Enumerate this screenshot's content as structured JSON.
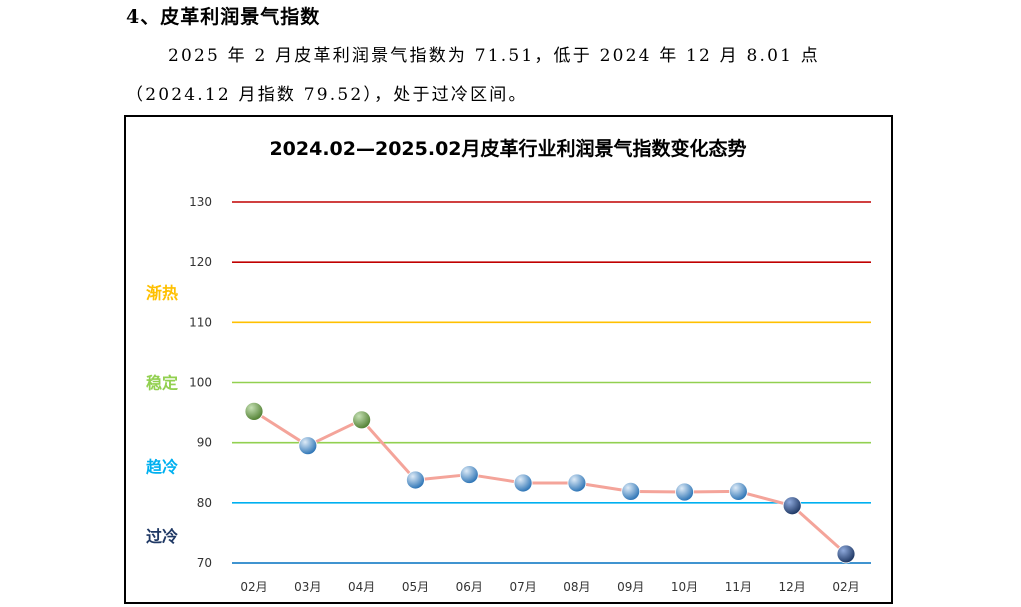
{
  "heading": "4、皮革利润景气指数",
  "paragraph": {
    "line1": "2025 年 2 月皮革利润景气指数为 71.51，低于 2024 年 12 月 8.01 点",
    "line2": "（2024.12 月指数 79.52），处于过冷区间。"
  },
  "chart_data": {
    "type": "line",
    "title": "2024.02—2025.02月皮革行业利润景气指数变化态势",
    "categories": [
      "02月",
      "03月",
      "04月",
      "05月",
      "06月",
      "07月",
      "08月",
      "09月",
      "10月",
      "11月",
      "12月",
      "02月"
    ],
    "values": [
      95.2,
      89.5,
      93.8,
      83.8,
      84.7,
      83.3,
      83.3,
      81.9,
      81.8,
      81.9,
      79.52,
      71.51
    ],
    "point_colors": [
      "#70ad47",
      "#5b9bd5",
      "#70ad47",
      "#5b9bd5",
      "#5b9bd5",
      "#5b9bd5",
      "#5b9bd5",
      "#5b9bd5",
      "#5b9bd5",
      "#5b9bd5",
      "#2f5597",
      "#2f5597"
    ],
    "line_color": "#f4a49a",
    "ylim": [
      70,
      130
    ],
    "yticks": [
      70,
      80,
      90,
      100,
      110,
      120,
      130
    ],
    "reference_lines": [
      {
        "value": 130,
        "color": "#c00000"
      },
      {
        "value": 120,
        "color": "#c00000"
      },
      {
        "value": 110,
        "color": "#ffc000"
      },
      {
        "value": 100,
        "color": "#92d050"
      },
      {
        "value": 90,
        "color": "#92d050"
      },
      {
        "value": 80,
        "color": "#00b0f0"
      },
      {
        "value": 70,
        "color": "#0070c0"
      }
    ],
    "zones": [
      {
        "label": "渐热",
        "value": 115,
        "color": "#ffc000"
      },
      {
        "label": "稳定",
        "value": 100,
        "color": "#92d050"
      },
      {
        "label": "趋冷",
        "value": 86,
        "color": "#00b0f0"
      },
      {
        "label": "过冷",
        "value": 74.5,
        "color": "#1f3864"
      }
    ]
  }
}
